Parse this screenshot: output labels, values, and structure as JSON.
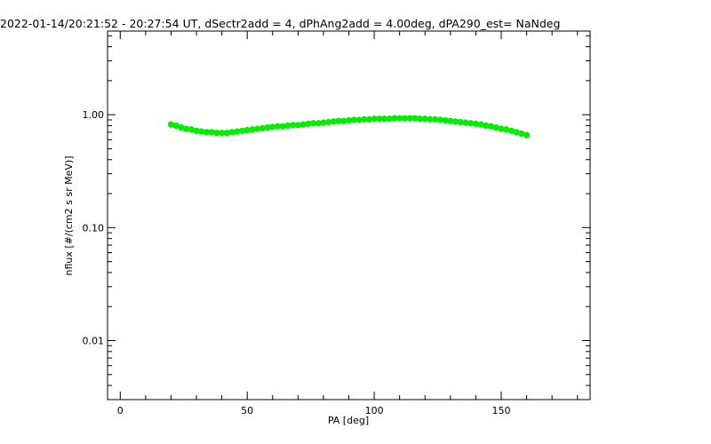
{
  "chart_data": {
    "type": "scatter",
    "title": "2022-01-14/20:21:52 - 20:27:54 UT, dSectr2add = 4, dPhAng2add = 4.00deg, dPA290_est=   NaNdeg",
    "xlabel": "PA [deg]",
    "ylabel": "nflux [#/(cm2 s sr MeV)]",
    "xlim": [
      -5,
      185
    ],
    "ylim": [
      0.003,
      5.5
    ],
    "yscale": "log",
    "grid": false,
    "x_ticks": [
      0,
      50,
      100,
      150
    ],
    "x_tick_labels": [
      "0",
      "50",
      "100",
      "150"
    ],
    "y_ticks": [
      0.01,
      0.1,
      1.0
    ],
    "y_tick_labels": [
      "0.01",
      "0.10",
      "1.00"
    ],
    "series_color": "#00ee00",
    "x": [
      20,
      22,
      24,
      26,
      28,
      30,
      32,
      34,
      36,
      38,
      40,
      42,
      44,
      46,
      48,
      50,
      52,
      54,
      56,
      58,
      60,
      62,
      64,
      66,
      68,
      70,
      72,
      74,
      76,
      78,
      80,
      82,
      84,
      86,
      88,
      90,
      92,
      94,
      96,
      98,
      100,
      102,
      104,
      106,
      108,
      110,
      112,
      114,
      116,
      118,
      120,
      122,
      124,
      126,
      128,
      130,
      132,
      134,
      136,
      138,
      140,
      142,
      144,
      146,
      148,
      150,
      152,
      154,
      156,
      158,
      160
    ],
    "y": [
      0.82,
      0.8,
      0.77,
      0.75,
      0.74,
      0.72,
      0.71,
      0.7,
      0.7,
      0.69,
      0.69,
      0.69,
      0.7,
      0.71,
      0.72,
      0.73,
      0.74,
      0.75,
      0.76,
      0.77,
      0.78,
      0.79,
      0.79,
      0.8,
      0.81,
      0.81,
      0.82,
      0.83,
      0.84,
      0.84,
      0.85,
      0.86,
      0.87,
      0.88,
      0.88,
      0.89,
      0.9,
      0.9,
      0.91,
      0.91,
      0.92,
      0.92,
      0.92,
      0.92,
      0.93,
      0.93,
      0.93,
      0.93,
      0.93,
      0.92,
      0.92,
      0.91,
      0.91,
      0.9,
      0.89,
      0.88,
      0.87,
      0.86,
      0.85,
      0.84,
      0.83,
      0.82,
      0.8,
      0.79,
      0.77,
      0.75,
      0.74,
      0.72,
      0.7,
      0.68,
      0.66
    ]
  }
}
